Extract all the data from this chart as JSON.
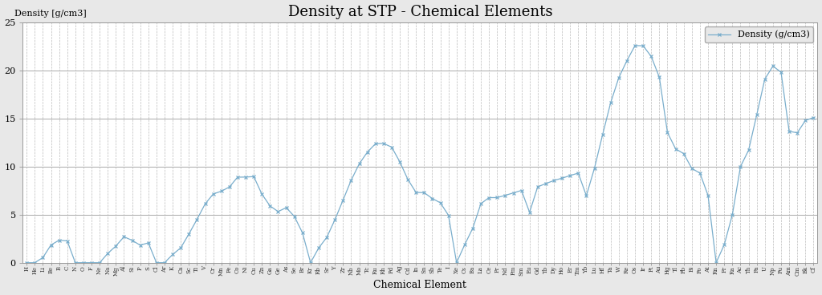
{
  "title": "Density at STP - Chemical Elements",
  "xlabel": "Chemical Element",
  "ylabel": "Density [g/cm3]",
  "legend_label": "Density (g/cm3)",
  "fig_bg_color": "#e8e8e8",
  "plot_bg_color": "#ffffff",
  "line_color": "#7aaecc",
  "grid_h_color": "#aaaaaa",
  "grid_v_color": "#bbbbbb",
  "marker": "x",
  "ylim": [
    0,
    25
  ],
  "yticks": [
    0,
    5,
    10,
    15,
    20,
    25
  ],
  "elements": [
    "H",
    "He",
    "Li",
    "Be",
    "B",
    "C",
    "N",
    "O",
    "F",
    "Ne",
    "Na",
    "Mg",
    "Al",
    "Si",
    "P",
    "S",
    "Cl",
    "Ar",
    "K",
    "Ca",
    "Sc",
    "Ti",
    "V",
    "Cr",
    "Mn",
    "Fe",
    "Co",
    "Ni",
    "Cu",
    "Zn",
    "Ga",
    "Ge",
    "As",
    "Se",
    "Br",
    "Kr",
    "Rb",
    "Sr",
    "Y",
    "Zr",
    "Nb",
    "Mo",
    "Tc",
    "Ru",
    "Rh",
    "Pd",
    "Ag",
    "Cd",
    "In",
    "Sn",
    "Sb",
    "Te",
    "I",
    "Xe",
    "Cs",
    "Ba",
    "La",
    "Ce",
    "Pr",
    "Nd",
    "Pm",
    "Sm",
    "Eu",
    "Gd",
    "Tb",
    "Dy",
    "Ho",
    "Er",
    "Tm",
    "Yb",
    "Lu",
    "Hf",
    "Ta",
    "W",
    "Re",
    "Os",
    "Ir",
    "Pt",
    "Au",
    "Hg",
    "Tl",
    "Pb",
    "Bi",
    "Po",
    "At",
    "Rn",
    "Fr",
    "Ra",
    "Ac",
    "Th",
    "Pa",
    "U",
    "Np",
    "Pu",
    "Am",
    "Cm",
    "Bk",
    "Cf"
  ],
  "densities": [
    8.99e-05,
    0.0001785,
    0.534,
    1.85,
    2.34,
    2.267,
    0.001251,
    0.001429,
    0.001696,
    0.0009,
    0.968,
    1.738,
    2.698,
    2.3296,
    1.82,
    2.067,
    0.003214,
    0.001784,
    0.856,
    1.55,
    2.985,
    4.507,
    6.11,
    7.15,
    7.44,
    7.874,
    8.9,
    8.908,
    8.96,
    7.134,
    5.907,
    5.323,
    5.727,
    4.819,
    3.119,
    0.003733,
    1.532,
    2.64,
    4.469,
    6.506,
    8.57,
    10.28,
    11.5,
    12.37,
    12.41,
    12.02,
    10.501,
    8.65,
    7.31,
    7.287,
    6.685,
    6.232,
    4.933,
    0.005887,
    1.873,
    3.594,
    6.145,
    6.77,
    6.773,
    7.007,
    7.26,
    7.52,
    5.243,
    7.895,
    8.229,
    8.55,
    8.795,
    9.066,
    9.321,
    6.965,
    9.84,
    13.31,
    16.654,
    19.25,
    21.02,
    22.587,
    22.562,
    21.45,
    19.282,
    13.5336,
    11.85,
    11.342,
    9.807,
    9.32,
    7.0,
    0.00973,
    1.87,
    5.0,
    10.0,
    11.7,
    15.37,
    19.1,
    20.45,
    19.816,
    13.67,
    13.51,
    14.79,
    15.1
  ]
}
